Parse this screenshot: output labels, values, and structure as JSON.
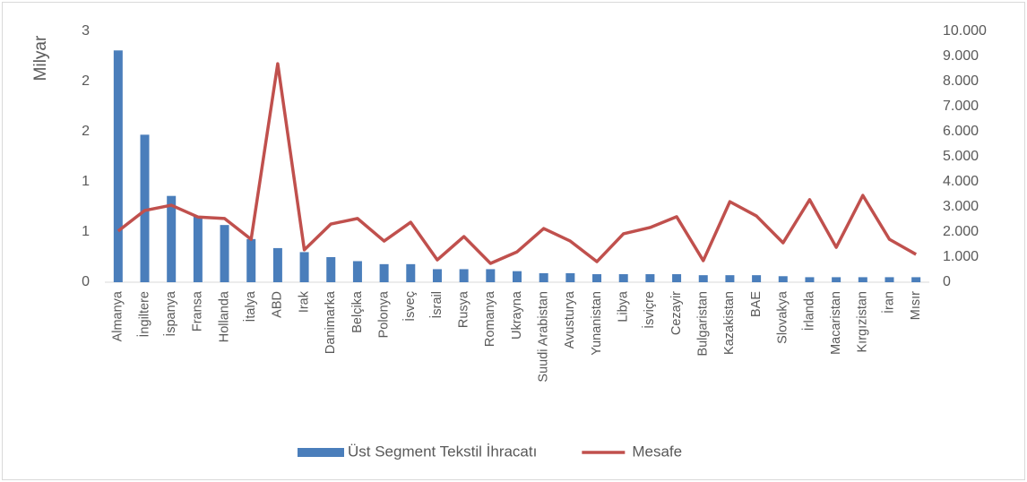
{
  "chart_data": {
    "type": "bar",
    "y_label": "Milyar",
    "categories": [
      "Almanya",
      "İngiltere",
      "İspanya",
      "Fransa",
      "Hollanda",
      "İtalya",
      "ABD",
      "Irak",
      "Danimarka",
      "Belçika",
      "Polonya",
      "İsveç",
      "İsrail",
      "Rusya",
      "Romanya",
      "Ukrayna",
      "Suudi Arabistan",
      "Avusturya",
      "Yunanistan",
      "Libya",
      "İsviçre",
      "Cezayir",
      "Bulgaristan",
      "Kazakistan",
      "BAE",
      "Slovakya",
      "İrlanda",
      "Macaristan",
      "Kırgızistan",
      "İran",
      "Mısır"
    ],
    "series": [
      {
        "name": "Üst Segment Tekstil İhracatı",
        "color": "#4a7ebb",
        "type": "bar",
        "values": [
          2.31,
          1.47,
          0.86,
          0.66,
          0.57,
          0.43,
          0.34,
          0.3,
          0.25,
          0.21,
          0.18,
          0.18,
          0.13,
          0.13,
          0.13,
          0.11,
          0.09,
          0.09,
          0.08,
          0.08,
          0.08,
          0.08,
          0.07,
          0.07,
          0.07,
          0.06,
          0.05,
          0.05,
          0.05,
          0.05,
          0.05
        ]
      },
      {
        "name": "Mesafe",
        "color": "#c0504d",
        "type": "line",
        "axis": "y2",
        "values": [
          2040,
          2860,
          3070,
          2600,
          2540,
          1710,
          8710,
          1290,
          2320,
          2540,
          1640,
          2390,
          890,
          1820,
          750,
          1210,
          2140,
          1640,
          820,
          1930,
          2180,
          2610,
          860,
          3210,
          2640,
          1570,
          3290,
          1390,
          3460,
          1710,
          1110
        ]
      }
    ],
    "ylim": [
      0,
      2.5
    ],
    "yticks": [
      0,
      {
        "value": 0.5,
        "label": "1"
      },
      1,
      {
        "value": 1.5,
        "label": "2"
      },
      2,
      {
        "value": 2.5,
        "label": "3"
      }
    ],
    "y2lim": [
      0,
      10000
    ],
    "y2ticks": [
      0,
      {
        "value": 1000,
        "label": "1.000"
      },
      {
        "value": 2000,
        "label": "2.000"
      },
      {
        "value": 3000,
        "label": "3.000"
      },
      {
        "value": 4000,
        "label": "4.000"
      },
      {
        "value": 5000,
        "label": "5.000"
      },
      {
        "value": 6000,
        "label": "6.000"
      },
      {
        "value": 7000,
        "label": "7.000"
      },
      {
        "value": 8000,
        "label": "8.000"
      },
      {
        "value": 9000,
        "label": "9.000"
      },
      {
        "value": 10000,
        "label": "10.000"
      }
    ],
    "grid": false,
    "legend": "bottom"
  }
}
